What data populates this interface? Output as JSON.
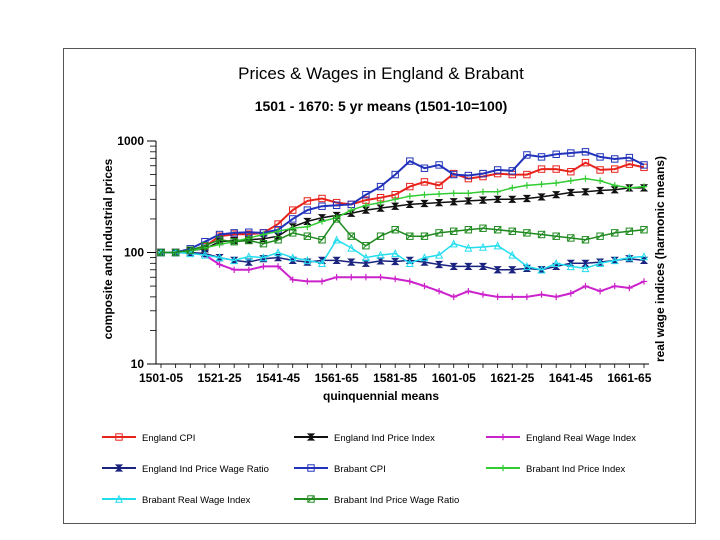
{
  "chart_data": {
    "type": "line",
    "title": "Prices & Wages in England & Brabant",
    "subtitle": "1501 - 1670: 5 yr means (1501-10=100)",
    "xlabel": "quinquennial means",
    "ylabel_left": "composite and industrial prices",
    "ylabel_right": "real wage indices (harmonic means)",
    "y_scale": "log",
    "ylim": [
      10,
      1000
    ],
    "y_ticks": [
      "1000",
      "100",
      "10"
    ],
    "x_categories": [
      "1501-05",
      "1506-10",
      "1511-15",
      "1516-20",
      "1521-25",
      "1526-30",
      "1531-35",
      "1536-40",
      "1541-45",
      "1546-50",
      "1551-55",
      "1556-60",
      "1561-65",
      "1566-70",
      "1571-75",
      "1576-80",
      "1581-85",
      "1586-90",
      "1591-95",
      "1596-00",
      "1601-05",
      "1606-10",
      "1611-15",
      "1616-20",
      "1621-25",
      "1626-30",
      "1631-35",
      "1636-40",
      "1641-45",
      "1646-50",
      "1651-55",
      "1656-60",
      "1661-65",
      "1666-70"
    ],
    "x_tick_labels": [
      "1501-05",
      "1521-25",
      "1541-45",
      "1561-65",
      "1581-85",
      "1601-05",
      "1621-25",
      "1641-45",
      "1661-65"
    ],
    "series": [
      {
        "name": "England CPI",
        "color": "#e8231c",
        "marker": "square",
        "values": [
          100,
          100,
          104,
          113,
          140,
          146,
          146,
          150,
          180,
          240,
          290,
          305,
          280,
          270,
          295,
          310,
          330,
          390,
          430,
          400,
          510,
          460,
          480,
          510,
          500,
          500,
          560,
          560,
          530,
          640,
          550,
          560,
          620,
          580
        ]
      },
      {
        "name": "England Ind Price Index",
        "color": "#111111",
        "marker": "bowtie",
        "values": [
          100,
          100,
          104,
          108,
          125,
          128,
          130,
          133,
          140,
          170,
          190,
          205,
          215,
          225,
          240,
          250,
          260,
          270,
          275,
          280,
          285,
          290,
          295,
          300,
          300,
          305,
          315,
          330,
          345,
          350,
          360,
          365,
          380,
          380
        ]
      },
      {
        "name": "England Real Wage Index",
        "color": "#cc22cc",
        "marker": "cross",
        "values": [
          100,
          100,
          100,
          95,
          78,
          70,
          70,
          75,
          75,
          57,
          55,
          55,
          60,
          60,
          60,
          60,
          58,
          55,
          50,
          45,
          40,
          45,
          42,
          40,
          40,
          40,
          42,
          40,
          43,
          50,
          45,
          50,
          48,
          55
        ]
      },
      {
        "name": "England Ind Price Wage Ratio",
        "color": "#1a237e",
        "marker": "bowtie",
        "values": [
          100,
          100,
          100,
          98,
          90,
          85,
          82,
          88,
          90,
          85,
          82,
          85,
          85,
          82,
          80,
          84,
          83,
          85,
          82,
          78,
          75,
          75,
          75,
          70,
          70,
          72,
          70,
          75,
          80,
          80,
          82,
          85,
          88,
          85
        ]
      },
      {
        "name": "Brabant CPI",
        "color": "#2233bb",
        "marker": "square",
        "values": [
          100,
          100,
          108,
          125,
          145,
          150,
          152,
          150,
          160,
          200,
          240,
          260,
          265,
          270,
          330,
          390,
          500,
          660,
          570,
          610,
          500,
          490,
          510,
          550,
          540,
          750,
          720,
          760,
          780,
          800,
          720,
          690,
          710,
          610
        ]
      },
      {
        "name": "Brabant Ind Price Index",
        "color": "#33cc33",
        "marker": "cross",
        "values": [
          100,
          100,
          103,
          110,
          118,
          125,
          135,
          145,
          155,
          165,
          170,
          190,
          205,
          240,
          265,
          280,
          300,
          320,
          330,
          335,
          340,
          340,
          350,
          350,
          380,
          400,
          410,
          420,
          440,
          460,
          440,
          400,
          380,
          390
        ]
      },
      {
        "name": "Brabant Real Wage Index",
        "color": "#22ddee",
        "marker": "triangle",
        "values": [
          100,
          100,
          98,
          95,
          90,
          85,
          92,
          90,
          100,
          90,
          85,
          80,
          130,
          110,
          90,
          95,
          98,
          80,
          90,
          95,
          120,
          110,
          112,
          115,
          95,
          75,
          70,
          80,
          75,
          72,
          80,
          85,
          90,
          92
        ]
      },
      {
        "name": "Brabant Ind Price Wage Ratio",
        "color": "#1f8a1f",
        "marker": "boxx",
        "values": [
          100,
          100,
          105,
          115,
          130,
          125,
          128,
          120,
          130,
          150,
          140,
          130,
          200,
          140,
          115,
          140,
          160,
          140,
          140,
          150,
          155,
          160,
          165,
          160,
          155,
          150,
          145,
          140,
          135,
          130,
          140,
          150,
          155,
          160
        ]
      }
    ],
    "legend": [
      "England CPI",
      "England Ind Price Index",
      "England Real Wage Index",
      "England Ind Price Wage Ratio",
      "Brabant CPI",
      "Brabant Ind Price Index",
      "Brabant Real Wage Index",
      "Brabant Ind Price Wage Ratio"
    ]
  }
}
